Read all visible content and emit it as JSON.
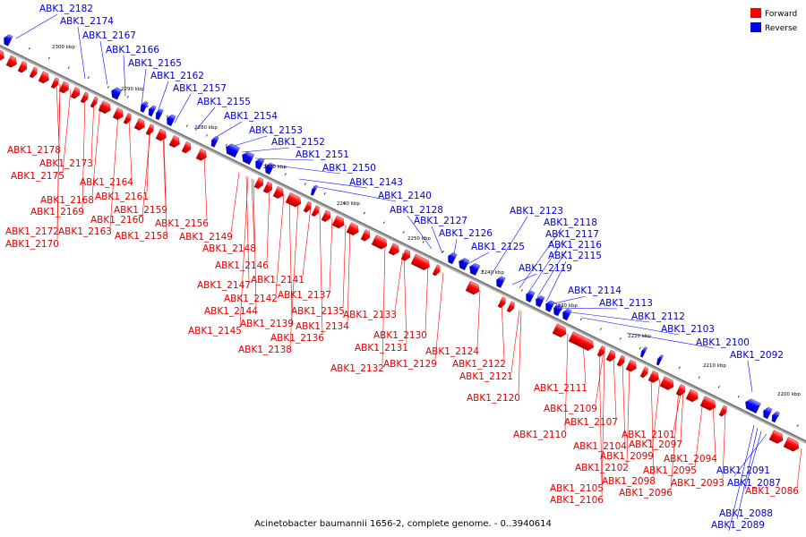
{
  "caption": "Acinetobacter baumannii 1656-2, complete genome. - 0..3940614",
  "legend": [
    {
      "label": "Forward",
      "color": "#ff0000"
    },
    {
      "label": "Reverse",
      "color": "#0000ff"
    }
  ],
  "colors": {
    "forward": "#ff0000",
    "reverse": "#0000ff",
    "label_forward": "#dd0000",
    "label_reverse": "#0000cc",
    "backbone": "#999999"
  },
  "kbp_ticks": [
    "2300 kbp",
    "2290 kbp",
    "2280 kbp",
    "2270 kbp",
    "2260 kbp",
    "2250 kbp",
    "2240 kbp",
    "2230 kbp",
    "2220 kbp",
    "2210 kbp",
    "2200 kbp"
  ],
  "reverse_labels": [
    "ABK1_2182",
    "ABK1_2174",
    "ABK1_2167",
    "ABK1_2166",
    "ABK1_2165",
    "ABK1_2162",
    "ABK1_2157",
    "ABK1_2155",
    "ABK1_2154",
    "ABK1_2153",
    "ABK1_2152",
    "ABK1_2151",
    "ABK1_2150",
    "ABK1_2143",
    "ABK1_2140",
    "ABK1_2128",
    "ABK1_2127",
    "ABK1_2126",
    "ABK1_2125",
    "ABK1_2123",
    "ABK1_2118",
    "ABK1_2117",
    "ABK1_2116",
    "ABK1_2115",
    "ABK1_2119",
    "ABK1_2114",
    "ABK1_2113",
    "ABK1_2112",
    "ABK1_2103",
    "ABK1_2100",
    "ABK1_2092",
    "ABK1_2091",
    "ABK1_2087",
    "ABK1_2088",
    "ABK1_2089"
  ],
  "forward_labels": [
    "ABK1_2178",
    "ABK1_2173",
    "ABK1_2175",
    "ABK1_2164",
    "ABK1_2161",
    "ABK1_2168",
    "ABK1_2159",
    "ABK1_2169",
    "ABK1_2160",
    "ABK1_2156",
    "ABK1_2172",
    "ABK1_2163",
    "ABK1_2158",
    "ABK1_2170",
    "ABK1_2149",
    "ABK1_2148",
    "ABK1_2146",
    "ABK1_2141",
    "ABK1_2147",
    "ABK1_2137",
    "ABK1_2142",
    "ABK1_2144",
    "ABK1_2135",
    "ABK1_2133",
    "ABK1_2139",
    "ABK1_2134",
    "ABK1_2145",
    "ABK1_2136",
    "ABK1_2130",
    "ABK1_2138",
    "ABK1_2131",
    "ABK1_2124",
    "ABK1_2129",
    "ABK1_2122",
    "ABK1_2132",
    "ABK1_2121",
    "ABK1_2111",
    "ABK1_2120",
    "ABK1_2109",
    "ABK1_2107",
    "ABK1_2110",
    "ABK1_2101",
    "ABK1_2104",
    "ABK1_2097",
    "ABK1_2099",
    "ABK1_2094",
    "ABK1_2102",
    "ABK1_2095",
    "ABK1_2098",
    "ABK1_2093",
    "ABK1_2096",
    "ABK1_2105",
    "ABK1_2106",
    "ABK1_2086"
  ]
}
